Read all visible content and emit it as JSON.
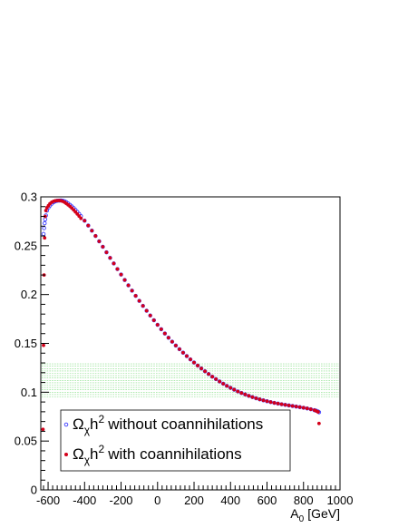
{
  "chart_data": {
    "type": "scatter",
    "title": "",
    "xlabel_main": "A",
    "xlabel_sub": "0",
    "xlabel_unit": "[GeV]",
    "ylabel": "",
    "xlim": [
      -640,
      1000
    ],
    "ylim": [
      0,
      0.3
    ],
    "x_ticks": [
      -600,
      -400,
      -200,
      0,
      200,
      400,
      600,
      800,
      1000
    ],
    "x_tick_labels": [
      "-600",
      "-400",
      "-200",
      "0",
      "200",
      "400",
      "600",
      "800",
      "1000"
    ],
    "y_ticks": [
      0,
      0.05,
      0.1,
      0.15,
      0.2,
      0.25,
      0.3
    ],
    "y_tick_labels": [
      "0",
      "0.05",
      "0.1",
      "0.15",
      "0.2",
      "0.25",
      "0.3"
    ],
    "band": {
      "ymin": 0.094,
      "ymax": 0.129,
      "color": "#7fdc7f"
    },
    "grid": false,
    "legend_position": "bottom-left",
    "series": [
      {
        "name_main": "Ω",
        "name_sub": "χ",
        "name_mid": "h",
        "name_sup": "2",
        "name_tail": "without coannihilations",
        "marker": "open-circle",
        "color": "#3a3aff",
        "x": [
          -625,
          -622,
          -619,
          -616,
          -612,
          -606,
          -598,
          -590,
          -580,
          -570,
          -560,
          -550,
          -540,
          -530,
          -520,
          -510,
          -500,
          -490,
          -480,
          -470,
          -460,
          -450,
          -440,
          -430,
          -420,
          -400,
          -380,
          -360,
          -340,
          -320,
          -300,
          -280,
          -260,
          -240,
          -220,
          -200,
          -180,
          -160,
          -140,
          -120,
          -100,
          -80,
          -60,
          -40,
          -20,
          0,
          20,
          40,
          60,
          80,
          100,
          120,
          140,
          160,
          180,
          200,
          220,
          240,
          260,
          280,
          300,
          320,
          340,
          360,
          380,
          400,
          420,
          440,
          460,
          480,
          500,
          520,
          540,
          560,
          580,
          600,
          620,
          640,
          660,
          680,
          700,
          720,
          740,
          760,
          780,
          800,
          820,
          840,
          860,
          870,
          880,
          885
        ],
        "y": [
          0.262,
          0.268,
          0.273,
          0.277,
          0.281,
          0.286,
          0.289,
          0.291,
          0.293,
          0.2945,
          0.2955,
          0.296,
          0.2962,
          0.2963,
          0.296,
          0.2955,
          0.2945,
          0.2932,
          0.2918,
          0.2902,
          0.2885,
          0.2866,
          0.2846,
          0.2825,
          0.2803,
          0.2756,
          0.2706,
          0.2654,
          0.26,
          0.2545,
          0.2489,
          0.2432,
          0.2375,
          0.2318,
          0.2261,
          0.2205,
          0.2149,
          0.2094,
          0.204,
          0.1987,
          0.1935,
          0.1884,
          0.1834,
          0.1785,
          0.1737,
          0.169,
          0.1645,
          0.1601,
          0.1558,
          0.1517,
          0.1478,
          0.1441,
          0.1405,
          0.137,
          0.1336,
          0.1304,
          0.1273,
          0.1243,
          0.1214,
          0.1186,
          0.1159,
          0.1134,
          0.111,
          0.1087,
          0.1065,
          0.1045,
          0.1026,
          0.1008,
          0.0992,
          0.0977,
          0.0963,
          0.095,
          0.0938,
          0.0927,
          0.0917,
          0.0908,
          0.0899,
          0.0891,
          0.0884,
          0.0877,
          0.0871,
          0.0865,
          0.0859,
          0.0853,
          0.0847,
          0.0841,
          0.0834,
          0.0826,
          0.0816,
          0.081,
          0.0802,
          0.0795
        ]
      },
      {
        "name_main": "Ω",
        "name_sub": "χ",
        "name_mid": "h",
        "name_sup": "2",
        "name_tail": "with coannihilations",
        "marker": "filled-circle",
        "color": "#d4001a",
        "x": [
          -628,
          -625,
          -622,
          -619,
          -616,
          -612,
          -606,
          -598,
          -590,
          -580,
          -570,
          -560,
          -550,
          -540,
          -530,
          -520,
          -510,
          -500,
          -490,
          -480,
          -470,
          -460,
          -450,
          -440,
          -430,
          -420,
          -400,
          -380,
          -360,
          -340,
          -320,
          -300,
          -280,
          -260,
          -240,
          -220,
          -200,
          -180,
          -160,
          -140,
          -120,
          -100,
          -80,
          -60,
          -40,
          -20,
          0,
          20,
          40,
          60,
          80,
          100,
          120,
          140,
          160,
          180,
          200,
          220,
          240,
          260,
          280,
          300,
          320,
          340,
          360,
          380,
          400,
          420,
          440,
          460,
          480,
          500,
          520,
          540,
          560,
          580,
          600,
          620,
          640,
          660,
          680,
          700,
          720,
          740,
          760,
          780,
          800,
          820,
          840,
          860,
          870,
          880,
          885
        ],
        "y": [
          0.062,
          0.148,
          0.22,
          0.258,
          0.28,
          0.286,
          0.289,
          0.291,
          0.293,
          0.2945,
          0.2955,
          0.296,
          0.2962,
          0.2963,
          0.296,
          0.2955,
          0.2945,
          0.2932,
          0.2918,
          0.2902,
          0.2885,
          0.2866,
          0.2846,
          0.2825,
          0.2803,
          0.278,
          0.2756,
          0.2706,
          0.2654,
          0.26,
          0.2545,
          0.2489,
          0.2432,
          0.2375,
          0.2318,
          0.2261,
          0.2205,
          0.2149,
          0.2094,
          0.204,
          0.1987,
          0.1935,
          0.1884,
          0.1834,
          0.1785,
          0.1737,
          0.169,
          0.1645,
          0.1601,
          0.1558,
          0.1517,
          0.1478,
          0.1441,
          0.1405,
          0.137,
          0.1336,
          0.1304,
          0.1273,
          0.1243,
          0.1214,
          0.1186,
          0.1159,
          0.1134,
          0.111,
          0.1087,
          0.1065,
          0.1045,
          0.1026,
          0.1008,
          0.0992,
          0.0977,
          0.0963,
          0.095,
          0.0938,
          0.0927,
          0.0917,
          0.0908,
          0.0899,
          0.0891,
          0.0884,
          0.0877,
          0.0871,
          0.0865,
          0.0859,
          0.0853,
          0.0847,
          0.0841,
          0.0834,
          0.0826,
          0.0816,
          0.0808,
          0.0798,
          0.068
        ]
      }
    ]
  }
}
